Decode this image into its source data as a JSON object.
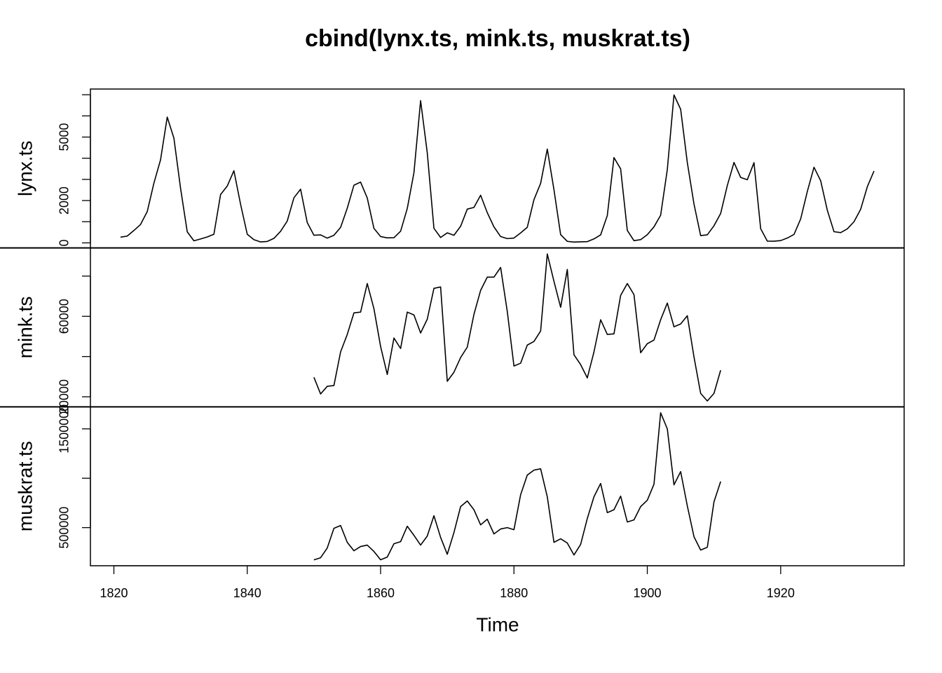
{
  "chart_data": {
    "type": "line",
    "title": "cbind(lynx.ts, mink.ts, muskrat.ts)",
    "xlabel": "Time",
    "color": "#000000",
    "x": [
      1821,
      1822,
      1823,
      1824,
      1825,
      1826,
      1827,
      1828,
      1829,
      1830,
      1831,
      1832,
      1833,
      1834,
      1835,
      1836,
      1837,
      1838,
      1839,
      1840,
      1841,
      1842,
      1843,
      1844,
      1845,
      1846,
      1847,
      1848,
      1849,
      1850,
      1851,
      1852,
      1853,
      1854,
      1855,
      1856,
      1857,
      1858,
      1859,
      1860,
      1861,
      1862,
      1863,
      1864,
      1865,
      1866,
      1867,
      1868,
      1869,
      1870,
      1871,
      1872,
      1873,
      1874,
      1875,
      1876,
      1877,
      1878,
      1879,
      1880,
      1881,
      1882,
      1883,
      1884,
      1885,
      1886,
      1887,
      1888,
      1889,
      1890,
      1891,
      1892,
      1893,
      1894,
      1895,
      1896,
      1897,
      1898,
      1899,
      1900,
      1901,
      1902,
      1903,
      1904,
      1905,
      1906,
      1907,
      1908,
      1909,
      1910,
      1911,
      1912,
      1913,
      1914,
      1915,
      1916,
      1917,
      1918,
      1919,
      1920,
      1921,
      1922,
      1923,
      1924,
      1925,
      1926,
      1927,
      1928,
      1929,
      1930,
      1931,
      1932,
      1933,
      1934
    ],
    "xlim": [
      1816.48,
      1938.52
    ],
    "xticks": [
      1820,
      1840,
      1860,
      1880,
      1900,
      1920
    ],
    "panels": [
      {
        "ylabel": "lynx.ts",
        "ylim": [
          -239,
          7269
        ],
        "yticks": [
          0,
          2000,
          5000
        ],
        "yminor_ticks": [
          1000,
          3000,
          4000,
          6000,
          7000
        ],
        "values": [
          269,
          321,
          585,
          871,
          1475,
          2821,
          3928,
          5943,
          4950,
          2577,
          523,
          98,
          184,
          279,
          409,
          2285,
          2685,
          3409,
          1824,
          409,
          151,
          45,
          68,
          213,
          546,
          1033,
          2129,
          2536,
          957,
          361,
          377,
          225,
          360,
          731,
          1638,
          2725,
          2871,
          2119,
          684,
          299,
          236,
          245,
          552,
          1623,
          3311,
          6721,
          4254,
          687,
          255,
          473,
          358,
          784,
          1594,
          1676,
          2251,
          1426,
          756,
          299,
          201,
          229,
          469,
          736,
          2042,
          2811,
          4431,
          2511,
          389,
          73,
          39,
          49,
          59,
          188,
          377,
          1292,
          4031,
          3495,
          587,
          105,
          153,
          387,
          758,
          1307,
          3465,
          6991,
          6313,
          3794,
          1836,
          345,
          382,
          808,
          1388,
          2713,
          3800,
          3091,
          2985,
          3790,
          674,
          81,
          80,
          108,
          229,
          399,
          1132,
          2432,
          3574,
          2935,
          1537,
          529,
          485,
          662,
          1000,
          1590,
          2657,
          3396
        ]
      },
      {
        "ylabel": "mink.ts",
        "ylim": [
          15000,
          94000
        ],
        "yticks": [
          20000,
          60000
        ],
        "yminor_ticks": [
          40000,
          80000
        ],
        "values": [
          null,
          null,
          null,
          null,
          null,
          null,
          null,
          null,
          null,
          null,
          null,
          null,
          null,
          null,
          null,
          null,
          null,
          null,
          null,
          null,
          null,
          null,
          null,
          null,
          null,
          null,
          null,
          null,
          null,
          29700,
          21400,
          25200,
          25600,
          42300,
          51000,
          61700,
          62100,
          76300,
          63800,
          45000,
          31100,
          49200,
          44000,
          62100,
          60700,
          51700,
          58600,
          73900,
          74600,
          27700,
          32200,
          39500,
          44700,
          61000,
          72900,
          79500,
          79500,
          84300,
          62400,
          35300,
          36700,
          45700,
          47500,
          52700,
          91000,
          77400,
          64500,
          83300,
          40900,
          36000,
          29400,
          42300,
          58300,
          51000,
          51300,
          70400,
          76300,
          70800,
          41900,
          46400,
          48200,
          58300,
          66600,
          54800,
          56200,
          60300,
          39800,
          21700,
          17900,
          21700,
          33200,
          null,
          null,
          null,
          null,
          null,
          null,
          null,
          null,
          null,
          null,
          null,
          null,
          null,
          null,
          null,
          null,
          null,
          null,
          null,
          null,
          null,
          null,
          null
        ]
      },
      {
        "ylabel": "muskrat.ts",
        "ylim": [
          114000,
          1723000
        ],
        "yticks": [
          500000,
          1500000
        ],
        "yminor_ticks": [
          1000000
        ],
        "values": [
          null,
          null,
          null,
          null,
          null,
          null,
          null,
          null,
          null,
          null,
          null,
          null,
          null,
          null,
          null,
          null,
          null,
          null,
          null,
          null,
          null,
          null,
          null,
          null,
          null,
          null,
          null,
          null,
          null,
          173800,
          195000,
          294000,
          493000,
          521000,
          351000,
          266000,
          309000,
          323000,
          259000,
          174000,
          202000,
          337000,
          358000,
          514000,
          422000,
          323000,
          415000,
          621000,
          401000,
          230000,
          450000,
          713000,
          770000,
          681000,
          528000,
          585000,
          436000,
          486000,
          500000,
          479000,
          833000,
          1032000,
          1082000,
          1096000,
          812000,
          351000,
          387000,
          344000,
          223000,
          330000,
          592000,
          812000,
          947000,
          652000,
          681000,
          819000,
          557000,
          578000,
          713000,
          777000,
          940000,
          1663000,
          1500000,
          933000,
          1067000,
          720000,
          408000,
          273000,
          301000,
          762000,
          967000,
          null,
          null,
          null,
          null,
          null,
          null,
          null,
          null,
          null,
          null,
          null,
          null,
          null,
          null,
          null,
          null,
          null,
          null,
          null,
          null,
          null,
          null,
          null
        ]
      }
    ]
  }
}
